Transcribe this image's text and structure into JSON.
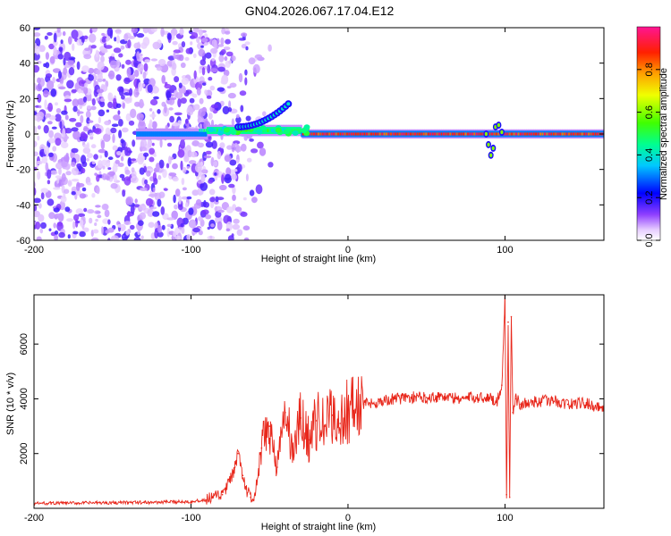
{
  "title": "GN04.2026.067.17.04.E12",
  "chart_data": [
    {
      "type": "heatmap",
      "name": "spectrogram",
      "xlabel": "Height of straight line (km)",
      "ylabel": "Frequency (Hz)",
      "xlim": [
        -200,
        163
      ],
      "ylim": [
        -60,
        60
      ],
      "x_ticks": [
        -200,
        -100,
        0,
        100
      ],
      "y_ticks": [
        -60,
        -40,
        -20,
        0,
        20,
        40,
        60
      ],
      "colorbar": {
        "label": "Normalized spectral amplitude",
        "range": [
          0.0,
          1.0
        ],
        "ticks": [
          0.0,
          0.2,
          0.4,
          0.6,
          0.8
        ]
      },
      "features": [
        {
          "label": "noise scatter",
          "x_range": [
            -200,
            -62
          ],
          "freq_range": [
            -60,
            60
          ],
          "amplitude": 0.1
        },
        {
          "label": "carrier onset",
          "x_range": [
            -135,
            -90
          ],
          "freq": 0,
          "amplitude": 0.3
        },
        {
          "label": "carrier (low altitude, broadened)",
          "x_range": [
            -90,
            -30
          ],
          "freq": 2,
          "amplitude": 0.45
        },
        {
          "label": "upward branch",
          "x_range": [
            -70,
            -38
          ],
          "freq_range": [
            4,
            17
          ],
          "amplitude": 0.4
        },
        {
          "label": "carrier (steady)",
          "x_range": [
            -30,
            163
          ],
          "freq": 0,
          "amplitude": 0.95
        },
        {
          "label": "disturbance near 100 km",
          "x_range": [
            88,
            100
          ],
          "freq_range": [
            -12,
            5
          ],
          "amplitude": 0.6
        }
      ]
    },
    {
      "type": "line",
      "name": "snr",
      "xlabel": "Height of straight line (km)",
      "ylabel": "SNR (10 * v/v)",
      "xlim": [
        -200,
        163
      ],
      "ylim": [
        0,
        7800
      ],
      "x_ticks": [
        -200,
        -100,
        0,
        100
      ],
      "y_ticks": [
        2000,
        4000,
        6000
      ],
      "series": [
        {
          "name": "SNR",
          "color": "#e8261a",
          "x": [
            -200,
            -180,
            -160,
            -140,
            -120,
            -100,
            -90,
            -80,
            -75,
            -72,
            -70,
            -67,
            -65,
            -62,
            -60,
            -57,
            -55,
            -50,
            -45,
            -40,
            -35,
            -30,
            -25,
            -20,
            -15,
            -10,
            -5,
            0,
            10,
            20,
            30,
            40,
            50,
            60,
            70,
            80,
            90,
            95,
            98,
            100,
            101,
            102,
            103,
            104,
            105,
            107,
            110,
            120,
            130,
            140,
            150,
            160,
            163
          ],
          "values": [
            180,
            190,
            200,
            210,
            220,
            250,
            300,
            500,
            1000,
            1500,
            2000,
            1200,
            700,
            400,
            300,
            1200,
            2200,
            3000,
            1500,
            3500,
            2000,
            3300,
            2500,
            3200,
            3000,
            3400,
            3100,
            3600,
            3800,
            3900,
            4000,
            4050,
            4050,
            4100,
            4000,
            4050,
            4050,
            3900,
            4500,
            7800,
            500,
            6800,
            400,
            7000,
            3500,
            4000,
            3800,
            3900,
            3950,
            3800,
            3850,
            3700,
            3750
          ]
        }
      ]
    }
  ]
}
